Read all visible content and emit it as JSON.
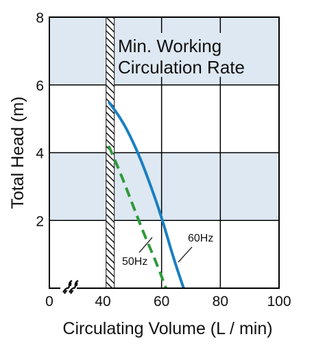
{
  "chart_data": {
    "type": "line",
    "xlabel": "Circulating Volume (L / min)",
    "ylabel": "Total Head (m)",
    "xlim": [
      0,
      100
    ],
    "ylim": [
      0,
      8
    ],
    "x_ticks": [
      "0",
      "40",
      "60",
      "80",
      "100"
    ],
    "y_ticks": [
      "2",
      "4",
      "6",
      "8"
    ],
    "axis_break": "x between 0 and 40",
    "grid": true,
    "shaded_bands": [
      [
        2,
        4
      ],
      [
        6,
        8
      ]
    ],
    "min_rate_line_x": 42.5,
    "annotation": [
      "Min. Working",
      "Circulation Rate"
    ],
    "series": [
      {
        "name": "60Hz",
        "color": "#1a7fc1",
        "style": "solid",
        "x": [
          42,
          47,
          52,
          56,
          60,
          64,
          67.5
        ],
        "y": [
          5.5,
          4.9,
          4.0,
          3.1,
          2.1,
          0.9,
          0.0
        ]
      },
      {
        "name": "50Hz",
        "color": "#2e9a3a",
        "style": "dashed",
        "x": [
          42,
          46,
          50,
          54,
          58,
          61.5
        ],
        "y": [
          4.2,
          3.4,
          2.5,
          1.6,
          0.8,
          0.0
        ]
      }
    ],
    "colors": {
      "band_fill": "#dde8f2",
      "grid": "#000000",
      "hatch": "#111111"
    }
  }
}
